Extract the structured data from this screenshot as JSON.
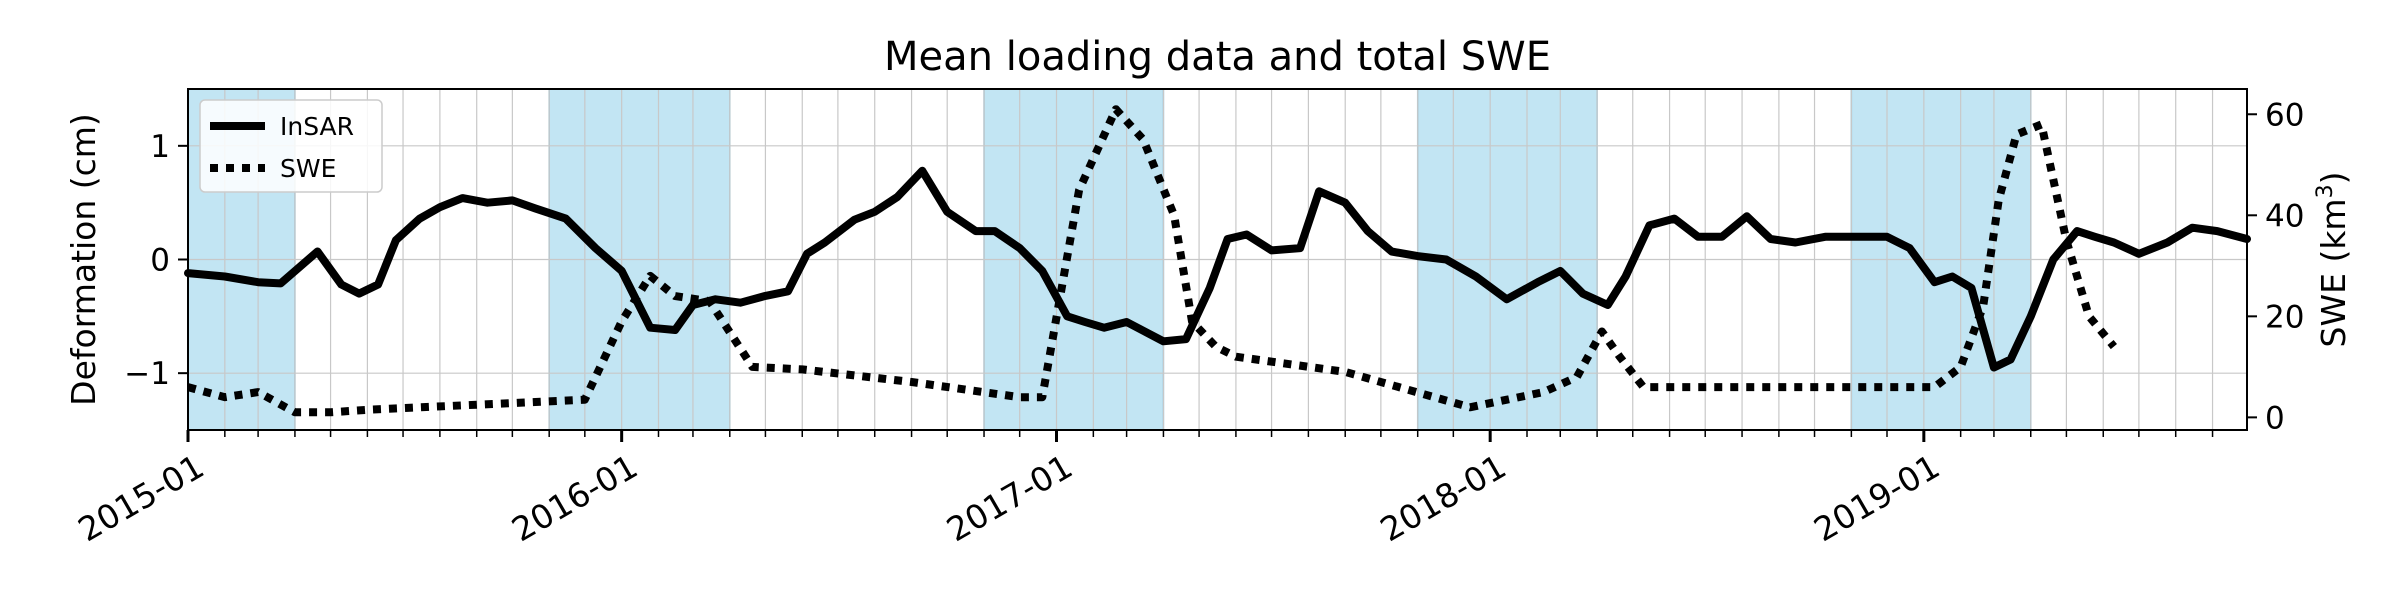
{
  "chart_data": {
    "type": "line",
    "title": "Mean loading data and total SWE",
    "ylabel_left": "Deformation (cm)",
    "ylabel_right_prefix": "SWE (km",
    "ylabel_right_sup": "3",
    "ylabel_right_suffix": ")",
    "x_range": [
      "2015-01-01",
      "2019-09-30"
    ],
    "x_ticks": [
      "2015-01",
      "2016-01",
      "2017-01",
      "2018-01",
      "2019-01"
    ],
    "y_left_range": [
      -1.5,
      1.5
    ],
    "y_left_ticks": [
      -1,
      0,
      1
    ],
    "y_right_range": [
      -2.5,
      65
    ],
    "y_right_ticks": [
      0,
      20,
      40,
      60
    ],
    "grid": true,
    "legend_position": "top-left",
    "legend": [
      "InSAR",
      "SWE"
    ],
    "shaded_periods": [
      [
        "2015-01-01",
        "2015-04-01"
      ],
      [
        "2015-11-01",
        "2016-04-01"
      ],
      [
        "2016-11-01",
        "2017-04-01"
      ],
      [
        "2017-11-01",
        "2018-04-01"
      ],
      [
        "2018-11-01",
        "2019-04-01"
      ]
    ],
    "shade_color": "#c2e5f3",
    "series": [
      {
        "name": "InSAR",
        "axis": "left",
        "style": "solid",
        "x": [
          "2015-01-01",
          "2015-02-01",
          "2015-03-01",
          "2015-03-20",
          "2015-04-20",
          "2015-05-10",
          "2015-05-25",
          "2015-06-10",
          "2015-06-25",
          "2015-07-15",
          "2015-08-01",
          "2015-08-20",
          "2015-09-10",
          "2015-10-01",
          "2015-10-20",
          "2015-11-15",
          "2015-12-10",
          "2016-01-01",
          "2016-01-25",
          "2016-02-15",
          "2016-03-01",
          "2016-03-20",
          "2016-04-10",
          "2016-05-01",
          "2016-05-20",
          "2016-06-05",
          "2016-06-20",
          "2016-07-15",
          "2016-08-01",
          "2016-08-20",
          "2016-09-10",
          "2016-10-01",
          "2016-10-25",
          "2016-11-10",
          "2016-12-01",
          "2016-12-20",
          "2017-01-10",
          "2017-01-25",
          "2017-02-10",
          "2017-03-01",
          "2017-04-01",
          "2017-04-20",
          "2017-05-10",
          "2017-05-25",
          "2017-06-10",
          "2017-07-01",
          "2017-07-25",
          "2017-08-10",
          "2017-09-01",
          "2017-09-20",
          "2017-10-10",
          "2017-11-01",
          "2017-11-25",
          "2017-12-20",
          "2018-01-15",
          "2018-02-10",
          "2018-03-01",
          "2018-03-20",
          "2018-04-10",
          "2018-04-25",
          "2018-05-15",
          "2018-06-05",
          "2018-06-25",
          "2018-07-15",
          "2018-08-05",
          "2018-08-25",
          "2018-09-15",
          "2018-10-10",
          "2018-11-10",
          "2018-12-01",
          "2018-12-20",
          "2019-01-10",
          "2019-01-25",
          "2019-02-10",
          "2019-03-01",
          "2019-03-15",
          "2019-04-01",
          "2019-04-20",
          "2019-05-10",
          "2019-05-25",
          "2019-06-10",
          "2019-07-01",
          "2019-07-25",
          "2019-08-15",
          "2019-09-05",
          "2019-09-30"
        ],
        "values": [
          -0.12,
          -0.15,
          -0.2,
          -0.21,
          0.07,
          -0.22,
          -0.3,
          -0.22,
          0.17,
          0.36,
          0.46,
          0.54,
          0.5,
          0.52,
          0.45,
          0.36,
          0.1,
          -0.1,
          -0.6,
          -0.62,
          -0.4,
          -0.35,
          -0.38,
          -0.32,
          -0.28,
          0.05,
          0.15,
          0.35,
          0.42,
          0.55,
          0.78,
          0.42,
          0.25,
          0.25,
          0.1,
          -0.1,
          -0.5,
          -0.55,
          -0.6,
          -0.55,
          -0.72,
          -0.7,
          -0.25,
          0.18,
          0.22,
          0.08,
          0.1,
          0.6,
          0.5,
          0.25,
          0.07,
          0.03,
          0.0,
          -0.15,
          -0.35,
          -0.2,
          -0.1,
          -0.3,
          -0.4,
          -0.15,
          0.3,
          0.36,
          0.2,
          0.2,
          0.38,
          0.18,
          0.15,
          0.2,
          0.2,
          0.2,
          0.1,
          -0.2,
          -0.15,
          -0.25,
          -0.95,
          -0.88,
          -0.5,
          0.0,
          0.25,
          0.2,
          0.15,
          0.05,
          0.15,
          0.28,
          0.25,
          0.18
        ]
      },
      {
        "name": "SWE",
        "axis": "right",
        "style": "dotted",
        "x": [
          "2015-01-01",
          "2015-02-01",
          "2015-03-01",
          "2015-04-01",
          "2015-05-01",
          "2015-06-01",
          "2015-09-01",
          "2015-12-01",
          "2016-01-01",
          "2016-01-25",
          "2016-02-15",
          "2016-03-15",
          "2016-04-20",
          "2016-06-01",
          "2016-09-01",
          "2016-12-01",
          "2016-12-20",
          "2017-01-20",
          "2017-02-20",
          "2017-03-15",
          "2017-04-10",
          "2017-04-25",
          "2017-05-15",
          "2017-06-01",
          "2017-09-01",
          "2017-12-15",
          "2018-01-15",
          "2018-02-15",
          "2018-03-15",
          "2018-04-05",
          "2018-04-20",
          "2018-05-10",
          "2018-07-01",
          "2018-09-01",
          "2018-11-01",
          "2018-12-15",
          "2019-01-10",
          "2019-02-01",
          "2019-02-20",
          "2019-03-05",
          "2019-03-20",
          "2019-04-10",
          "2019-05-01",
          "2019-05-20",
          "2019-06-10"
        ],
        "values": [
          6,
          4,
          5,
          1,
          1,
          1.5,
          2.5,
          3.5,
          19,
          28,
          24,
          23,
          10,
          9.5,
          7,
          4,
          4,
          45,
          61,
          55,
          40,
          19,
          14,
          12,
          9,
          2,
          3.5,
          5,
          8,
          17,
          12,
          6,
          6,
          6,
          6,
          6,
          6,
          10,
          22,
          43,
          56,
          58,
          35,
          20,
          14
        ]
      }
    ]
  }
}
